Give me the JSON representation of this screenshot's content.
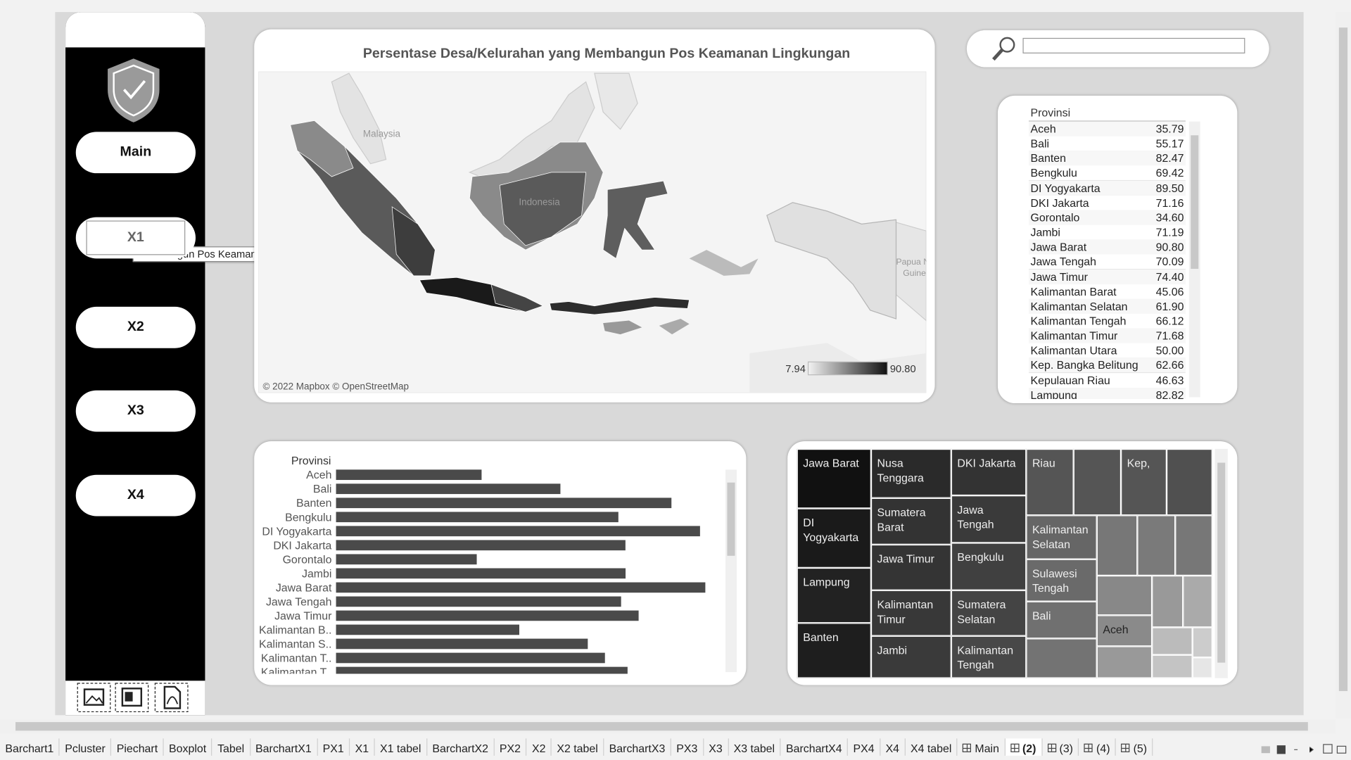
{
  "sidebar": {
    "buttons": [
      "Main",
      "X1",
      "X2",
      "X3",
      "X4"
    ],
    "tooltip": "Membangun Pos Keamanan Lingkungan"
  },
  "search": {},
  "map": {
    "title": "Persentase Desa/Kelurahan yang Membangun Pos Keamanan Lingkungan",
    "labels": [
      "Malaysia",
      "Indonesia",
      "Papua N",
      "Guine"
    ],
    "attribution": "© 2022 Mapbox © OpenStreetMap",
    "legend": {
      "min": "7.94",
      "max": "90.80"
    }
  },
  "table": {
    "header": "Provinsi",
    "rows": [
      [
        "Aceh",
        "35.79"
      ],
      [
        "Bali",
        "55.17"
      ],
      [
        "Banten",
        "82.47"
      ],
      [
        "Bengkulu",
        "69.42"
      ],
      [
        "DI Yogyakarta",
        "89.50"
      ],
      [
        "DKI Jakarta",
        "71.16"
      ],
      [
        "Gorontalo",
        "34.60"
      ],
      [
        "Jambi",
        "71.19"
      ],
      [
        "Jawa Barat",
        "90.80"
      ],
      [
        "Jawa Tengah",
        "70.09"
      ],
      [
        "Jawa Timur",
        "74.40"
      ],
      [
        "Kalimantan Barat",
        "45.06"
      ],
      [
        "Kalimantan Selatan",
        "61.90"
      ],
      [
        "Kalimantan Tengah",
        "66.12"
      ],
      [
        "Kalimantan Timur",
        "71.68"
      ],
      [
        "Kalimantan Utara",
        "50.00"
      ],
      [
        "Kep. Bangka Belitung",
        "62.66"
      ],
      [
        "Kepulauan Riau",
        "46.63"
      ],
      [
        "Lampung",
        "82.82"
      ]
    ]
  },
  "bar_chart": {
    "type": "bar",
    "header": "Provinsi",
    "categories": [
      "Aceh",
      "Bali",
      "Banten",
      "Bengkulu",
      "DI Yogyakarta",
      "DKI Jakarta",
      "Gorontalo",
      "Jambi",
      "Jawa Barat",
      "Jawa Tengah",
      "Jawa Timur",
      "Kalimantan B..",
      "Kalimantan S..",
      "Kalimantan T..",
      "Kalimantan T.."
    ],
    "values": [
      35.79,
      55.17,
      82.47,
      69.42,
      89.5,
      71.16,
      34.6,
      71.19,
      90.8,
      70.09,
      74.4,
      45.06,
      61.9,
      66.12,
      71.68
    ],
    "xlim": [
      0,
      93
    ],
    "color": "#4a4a4a"
  },
  "treemap": {
    "labels": [
      "Jawa Barat",
      "DI Yogyakarta",
      "Lampung",
      "Banten",
      "Nusa Tenggara",
      "Sumatera Barat",
      "Jawa Timur",
      "Kalimantan Timur",
      "Jambi",
      "DKI Jakarta",
      "Jawa Tengah",
      "Bengkulu",
      "Sumatera Selatan",
      "Kalimantan Tengah",
      "Riau",
      "Kep,",
      "Kalimantan Selatan",
      "Sulawesi Tengah",
      "Bali",
      "Aceh"
    ]
  },
  "tabs": [
    "Barchart1",
    "Pcluster",
    "Piechart",
    "Boxplot",
    "Tabel",
    "BarchartX1",
    "PX1",
    "X1",
    "X1 tabel",
    "BarchartX2",
    "PX2",
    "X2",
    "X2 tabel",
    "BarchartX3",
    "PX3",
    "X3",
    "X3 tabel",
    "BarchartX4",
    "PX4",
    "X4",
    "X4 tabel",
    "Main",
    "(2)",
    "(3)",
    "(4)",
    "(5)"
  ]
}
